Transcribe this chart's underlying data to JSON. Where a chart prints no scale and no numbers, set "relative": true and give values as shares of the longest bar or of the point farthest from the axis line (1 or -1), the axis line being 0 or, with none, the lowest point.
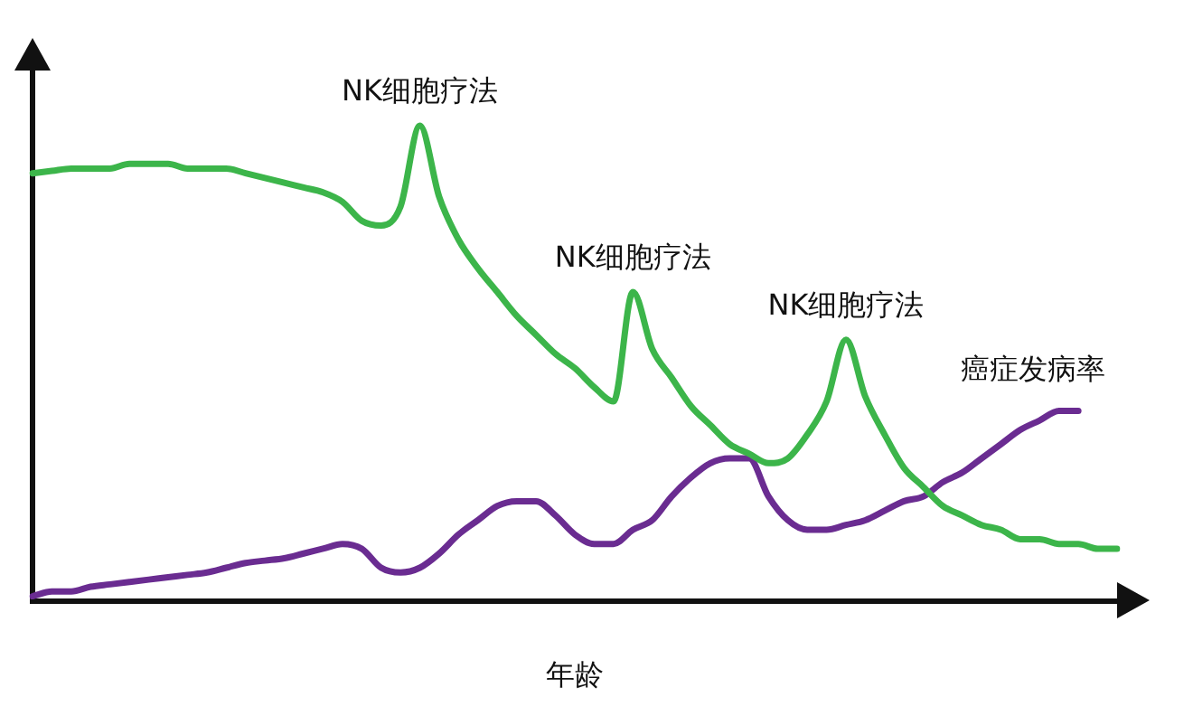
{
  "chart_data": {
    "type": "line",
    "relative": true,
    "xlabel": "年龄",
    "legend": false,
    "marker": "none",
    "line_style": "solid",
    "grid": false,
    "categories": [
      null,
      null,
      null,
      null,
      null,
      null,
      null,
      null,
      null,
      null,
      null,
      null,
      null,
      null,
      null,
      null,
      null,
      null,
      null,
      null,
      null,
      null,
      null,
      null,
      null,
      null,
      null,
      null,
      null,
      null,
      null,
      null,
      null,
      null,
      null,
      null,
      null,
      null,
      null,
      null,
      null,
      null,
      null,
      null,
      null,
      null,
      null,
      null,
      null,
      null,
      null,
      null,
      null,
      null,
      null,
      null,
      null
    ],
    "series": [
      {
        "color": "#3cb54a",
        "values": [
          0.9,
          0.905,
          0.91,
          0.91,
          0.91,
          0.92,
          0.92,
          0.92,
          0.91,
          0.91,
          0.91,
          0.9,
          0.89,
          0.88,
          0.87,
          0.86,
          0.84,
          0.8,
          0.79,
          0.83,
          1.0,
          0.85,
          0.76,
          0.7,
          0.65,
          0.6,
          0.56,
          0.52,
          0.49,
          0.45,
          0.42,
          0.65,
          0.53,
          0.47,
          0.41,
          0.37,
          0.33,
          0.31,
          0.29,
          0.3,
          0.35,
          0.42,
          0.55,
          0.43,
          0.35,
          0.28,
          0.24,
          0.2,
          0.18,
          0.16,
          0.15,
          0.13,
          0.13,
          0.12,
          0.12,
          0.11,
          0.11
        ]
      },
      {
        "name": "癌症发病率",
        "color": "#6a2c91",
        "values": [
          0.01,
          0.02,
          0.02,
          0.03,
          0.035,
          0.04,
          0.045,
          0.05,
          0.055,
          0.06,
          0.07,
          0.08,
          0.085,
          0.09,
          0.1,
          0.11,
          0.12,
          0.11,
          0.07,
          0.06,
          0.07,
          0.1,
          0.14,
          0.17,
          0.2,
          0.21,
          0.21,
          0.18,
          0.14,
          0.12,
          0.12,
          0.15,
          0.17,
          0.22,
          0.26,
          0.29,
          0.3,
          0.3,
          0.22,
          0.17,
          0.15,
          0.15,
          0.16,
          0.17,
          0.19,
          0.21,
          0.22,
          0.25,
          0.27,
          0.3,
          0.33,
          0.36,
          0.38,
          0.4,
          0.4,
          null,
          null
        ]
      }
    ],
    "annotations": [
      "NK细胞疗法",
      "NK细胞疗法",
      "NK细胞疗法"
    ]
  }
}
